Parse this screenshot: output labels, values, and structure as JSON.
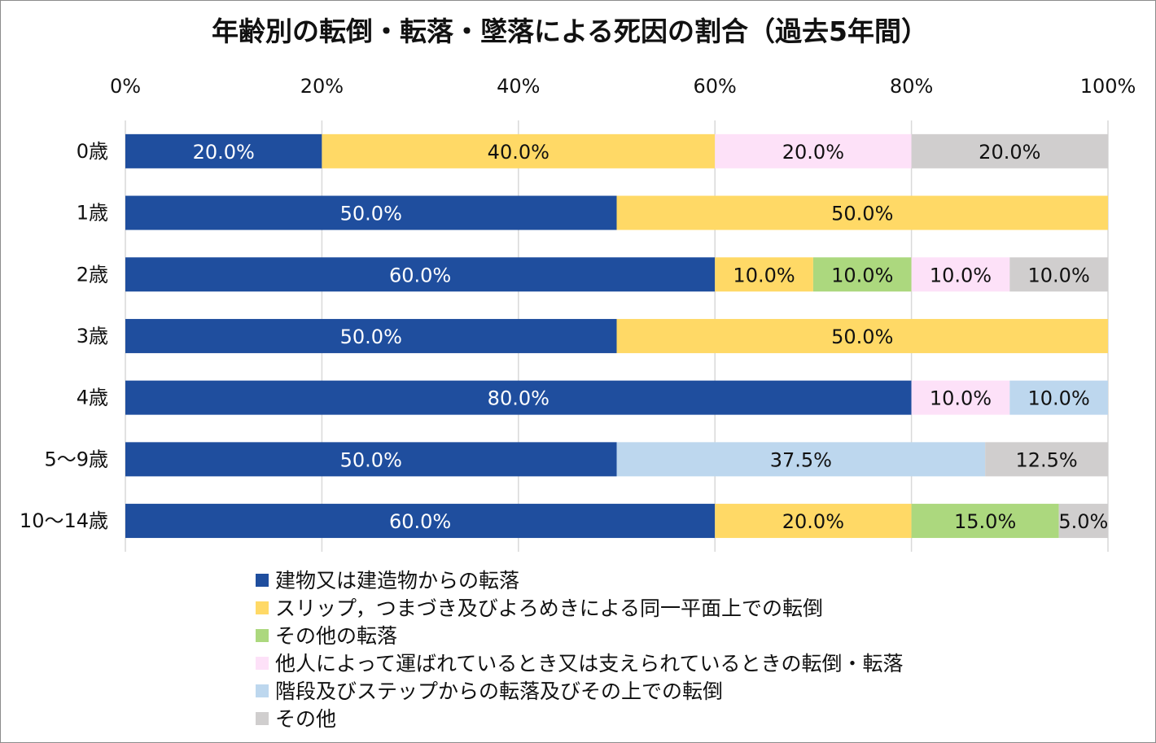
{
  "chart_data": {
    "type": "bar",
    "orientation": "horizontal",
    "stacked": "percent",
    "title": "年齢別の転倒・転落・墜落による死因の割合（過去5年間）",
    "xlabel": "",
    "ylabel": "",
    "xlim": [
      0,
      100
    ],
    "x_ticks": [
      "0%",
      "20%",
      "40%",
      "60%",
      "80%",
      "100%"
    ],
    "grid": true,
    "legend_position": "bottom",
    "categories": [
      "0歳",
      "1歳",
      "2歳",
      "3歳",
      "4歳",
      "5〜9歳",
      "10〜14歳"
    ],
    "series": [
      {
        "name": "建物又は建造物からの転落",
        "color": "#1f4e9e",
        "label_color": "#ffffff",
        "values": [
          20.0,
          50.0,
          60.0,
          50.0,
          80.0,
          50.0,
          60.0
        ]
      },
      {
        "name": "スリップ，つまづき及びよろめきによる同一平面上での転倒",
        "color": "#ffd966",
        "label_color": "#111111",
        "values": [
          40.0,
          50.0,
          10.0,
          50.0,
          0,
          0,
          20.0
        ]
      },
      {
        "name": "その他の転落",
        "color": "#acd87e",
        "label_color": "#111111",
        "values": [
          0,
          0,
          10.0,
          0,
          0,
          0,
          15.0
        ]
      },
      {
        "name": "他人によって運ばれているとき又は支えられているときの転倒・転落",
        "color": "#fde1f8",
        "label_color": "#111111",
        "values": [
          20.0,
          0,
          10.0,
          0,
          10.0,
          0,
          0
        ]
      },
      {
        "name": "階段及びステップからの転落及びその上での転倒",
        "color": "#bdd7ee",
        "label_color": "#111111",
        "values": [
          0,
          0,
          0,
          0,
          10.0,
          37.5,
          0
        ]
      },
      {
        "name": "その他",
        "color": "#d0cece",
        "label_color": "#111111",
        "values": [
          20.0,
          0,
          10.0,
          0,
          0,
          12.5,
          5.0
        ]
      }
    ]
  }
}
